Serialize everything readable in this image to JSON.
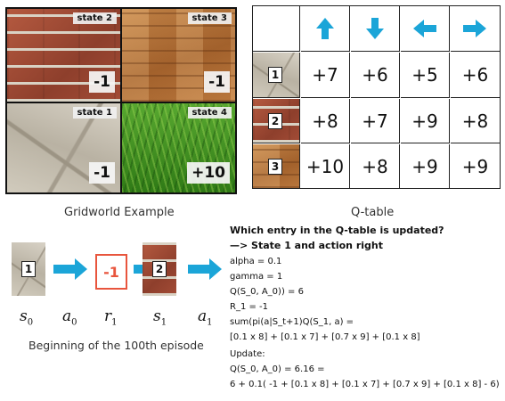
{
  "gridworld": {
    "caption": "Gridworld Example",
    "states": [
      {
        "label": "state 2",
        "reward": "-1",
        "texture": "brick"
      },
      {
        "label": "state 3",
        "reward": "-1",
        "texture": "wood"
      },
      {
        "label": "state 1",
        "reward": "-1",
        "texture": "stone"
      },
      {
        "label": "state 4",
        "reward": "+10",
        "texture": "grass"
      }
    ]
  },
  "qtable": {
    "caption": "Q-table",
    "actions": [
      "arrow-up-icon",
      "arrow-down-icon",
      "arrow-left-icon",
      "arrow-right-icon"
    ],
    "arrow_color": "#1ba5d8",
    "rows": [
      {
        "state": "1",
        "values": [
          "+7",
          "+6",
          "+5",
          "+6"
        ]
      },
      {
        "state": "2",
        "values": [
          "+8",
          "+7",
          "+9",
          "+8"
        ]
      },
      {
        "state": "3",
        "values": [
          "+10",
          "+8",
          "+9",
          "+9"
        ]
      }
    ]
  },
  "episode": {
    "caption": "Beginning of the 100th episode",
    "s0_state": "1",
    "reward": "-1",
    "reward_color": "#e8553d",
    "s1_state": "2",
    "symbols": {
      "s0": "s",
      "s0_sub": "0",
      "a0": "a",
      "a0_sub": "0",
      "r1": "r",
      "r1_sub": "1",
      "s1": "s",
      "s1_sub": "1",
      "a1": "a",
      "a1_sub": "1"
    }
  },
  "update_text": {
    "question": "Which entry in the Q-table is updated?",
    "answer": "—> State 1 and action right",
    "lines": [
      "alpha = 0.1",
      "gamma = 1",
      "Q(S_0, A_0)) = 6",
      "R_1 = -1",
      "sum(pi(a|S_t+1)Q(S_1, a) =",
      "[0.1 x 8] + [0.1 x 7] + [0.7 x 9] + [0.1 x 8]",
      "Update:",
      "Q(S_0, A_0) = 6.16 =",
      "6 + 0.1( -1 + [0.1 x 8] + [0.1 x 7] + [0.7 x 9] + [0.1 x 8] - 6)"
    ]
  }
}
